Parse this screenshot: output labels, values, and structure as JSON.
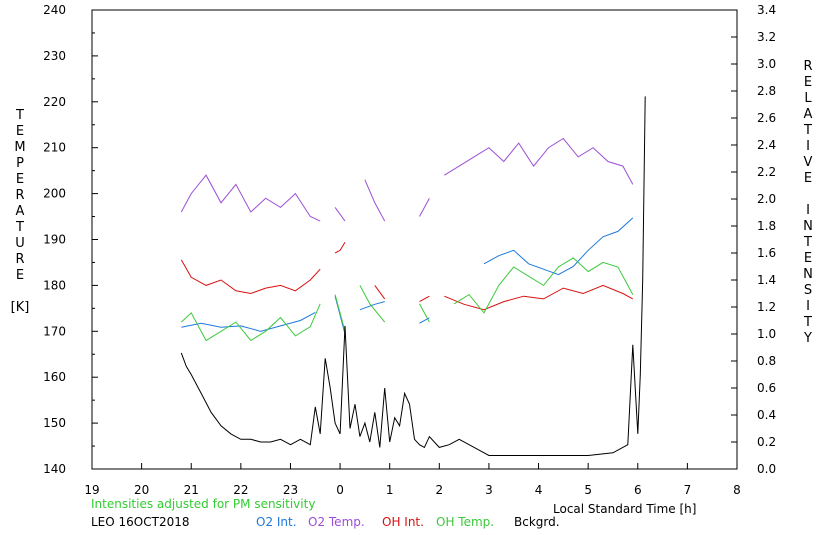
{
  "chart_data": {
    "type": "line",
    "y_left_label_letters": [
      "T",
      "E",
      "M",
      "P",
      "E",
      "R",
      "A",
      "T",
      "U",
      "R",
      "E",
      "",
      "[K]"
    ],
    "y_right_label_letters": [
      "R",
      "E",
      "L",
      "A",
      "T",
      "I",
      "V",
      "E",
      "",
      "I",
      "N",
      "T",
      "E",
      "N",
      "S",
      "I",
      "T",
      "Y"
    ],
    "xlabel": "Local Standard Time [h]",
    "xlim": [
      19,
      32
    ],
    "x_tick_values": [
      19,
      20,
      21,
      22,
      23,
      24,
      25,
      26,
      27,
      28,
      29,
      30,
      31,
      32
    ],
    "x_tick_labels": [
      "19",
      "20",
      "21",
      "22",
      "23",
      "0",
      "1",
      "2",
      "3",
      "4",
      "5",
      "6",
      "7",
      "8"
    ],
    "ylim_left": [
      140,
      240
    ],
    "y_left_ticks": [
      140,
      150,
      160,
      170,
      180,
      190,
      200,
      210,
      220,
      230,
      240
    ],
    "ylim_right": [
      0.0,
      3.4
    ],
    "y_right_ticks": [
      "0.0",
      "0.2",
      "0.4",
      "0.6",
      "0.8",
      "1.0",
      "1.2",
      "1.4",
      "1.6",
      "1.8",
      "2.0",
      "2.2",
      "2.4",
      "2.6",
      "2.8",
      "3.0",
      "3.2",
      "3.4"
    ],
    "note": "Intensities adjusted for PM sensitivity",
    "station": "LEO 16OCT2018",
    "colors": {
      "o2_int": "#1e78dc",
      "o2_temp": "#9b4fd6",
      "oh_int": "#d81010",
      "oh_temp": "#3cc83c",
      "bckgrd": "#000000",
      "note": "#33cc33"
    },
    "series": [
      {
        "name": "O2 Int.",
        "key": "o2_int",
        "axis": "right",
        "segments": [
          {
            "x": [
              20.8,
              21.2,
              21.6,
              22.0,
              22.4,
              22.8,
              23.2,
              23.5
            ],
            "y": [
              1.05,
              1.08,
              1.05,
              1.06,
              1.02,
              1.06,
              1.1,
              1.16
            ]
          },
          {
            "x": [
              23.9,
              24.0,
              24.1
            ],
            "y": [
              1.28,
              1.14,
              1.0
            ]
          },
          {
            "x": [
              24.4,
              24.7,
              24.9
            ],
            "y": [
              1.18,
              1.22,
              1.24
            ]
          },
          {
            "x": [
              25.6,
              25.8
            ],
            "y": [
              1.08,
              1.12
            ]
          },
          {
            "x": [
              26.9,
              27.2,
              27.5,
              27.8,
              28.1,
              28.4,
              28.7,
              29.0,
              29.3,
              29.6,
              29.9
            ],
            "y": [
              1.52,
              1.58,
              1.62,
              1.52,
              1.48,
              1.44,
              1.5,
              1.62,
              1.72,
              1.76,
              1.86
            ]
          }
        ]
      },
      {
        "name": "O2 Temp.",
        "key": "o2_temp",
        "axis": "left",
        "segments": [
          {
            "x": [
              20.8,
              21.0,
              21.3,
              21.6,
              21.9,
              22.2,
              22.5,
              22.8,
              23.1,
              23.4,
              23.6
            ],
            "y": [
              196,
              200,
              204,
              198,
              202,
              196,
              199,
              197,
              200,
              195,
              194
            ]
          },
          {
            "x": [
              23.9,
              24.1
            ],
            "y": [
              197,
              194
            ]
          },
          {
            "x": [
              24.5,
              24.7,
              24.9
            ],
            "y": [
              203,
              198,
              194
            ]
          },
          {
            "x": [
              25.6,
              25.8
            ],
            "y": [
              195,
              199
            ]
          },
          {
            "x": [
              26.1,
              26.4,
              26.7,
              27.0,
              27.3,
              27.6,
              27.9,
              28.2,
              28.5,
              28.8,
              29.1,
              29.4,
              29.7,
              29.9
            ],
            "y": [
              204,
              206,
              208,
              210,
              207,
              211,
              206,
              210,
              212,
              208,
              210,
              207,
              206,
              202
            ]
          }
        ]
      },
      {
        "name": "OH Int.",
        "key": "oh_int",
        "axis": "right",
        "segments": [
          {
            "x": [
              20.8,
              21.0,
              21.3,
              21.6,
              21.9,
              22.2,
              22.5,
              22.8,
              23.1,
              23.4,
              23.6
            ],
            "y": [
              1.55,
              1.42,
              1.36,
              1.4,
              1.32,
              1.3,
              1.34,
              1.36,
              1.32,
              1.4,
              1.48
            ]
          },
          {
            "x": [
              23.9,
              24.0,
              24.1
            ],
            "y": [
              1.6,
              1.62,
              1.68
            ]
          },
          {
            "x": [
              24.7,
              24.9
            ],
            "y": [
              1.36,
              1.26
            ]
          },
          {
            "x": [
              25.6,
              25.8
            ],
            "y": [
              1.24,
              1.28
            ]
          },
          {
            "x": [
              26.1,
              26.5,
              26.9,
              27.3,
              27.7,
              28.1,
              28.5,
              28.9,
              29.3,
              29.7,
              29.9
            ],
            "y": [
              1.28,
              1.22,
              1.18,
              1.24,
              1.28,
              1.26,
              1.34,
              1.3,
              1.36,
              1.3,
              1.26
            ]
          }
        ]
      },
      {
        "name": "OH Temp.",
        "key": "oh_temp",
        "axis": "left",
        "segments": [
          {
            "x": [
              20.8,
              21.0,
              21.3,
              21.6,
              21.9,
              22.2,
              22.5,
              22.8,
              23.1,
              23.4,
              23.6
            ],
            "y": [
              172,
              174,
              168,
              170,
              172,
              168,
              170,
              173,
              169,
              171,
              176
            ]
          },
          {
            "x": [
              23.9,
              24.1
            ],
            "y": [
              178,
              170
            ]
          },
          {
            "x": [
              24.4,
              24.6,
              24.9
            ],
            "y": [
              180,
              176,
              172
            ]
          },
          {
            "x": [
              25.6,
              25.8
            ],
            "y": [
              176,
              172
            ]
          },
          {
            "x": [
              26.3,
              26.6,
              26.9,
              27.2,
              27.5,
              27.8,
              28.1,
              28.4,
              28.7,
              29.0,
              29.3,
              29.6,
              29.9
            ],
            "y": [
              176,
              178,
              174,
              180,
              184,
              182,
              180,
              184,
              186,
              183,
              185,
              184,
              178
            ]
          }
        ]
      },
      {
        "name": "Bckgrd.",
        "key": "bckgrd",
        "axis": "right",
        "segments": [
          {
            "x": [
              20.8,
              20.9,
              21.0,
              21.2,
              21.4,
              21.6,
              21.8,
              22.0,
              22.2,
              22.4,
              22.6,
              22.8,
              23.0,
              23.2,
              23.4,
              23.5,
              23.6,
              23.7,
              23.8,
              23.9,
              24.0,
              24.1,
              24.2,
              24.3,
              24.4,
              24.5,
              24.6,
              24.7,
              24.8,
              24.9,
              25.0,
              25.1,
              25.2,
              25.3,
              25.4,
              25.5,
              25.6,
              25.7,
              25.8,
              26.0,
              26.2,
              26.4,
              26.6,
              26.8,
              27.0,
              27.5,
              28.0,
              28.5,
              29.0,
              29.5,
              29.8,
              29.9,
              30.0,
              30.05,
              30.1,
              30.15
            ],
            "y": [
              0.86,
              0.76,
              0.7,
              0.56,
              0.42,
              0.32,
              0.26,
              0.22,
              0.22,
              0.2,
              0.2,
              0.22,
              0.18,
              0.22,
              0.18,
              0.46,
              0.26,
              0.82,
              0.6,
              0.34,
              0.26,
              1.06,
              0.3,
              0.48,
              0.24,
              0.34,
              0.2,
              0.42,
              0.16,
              0.6,
              0.2,
              0.38,
              0.32,
              0.56,
              0.48,
              0.22,
              0.18,
              0.16,
              0.24,
              0.16,
              0.18,
              0.22,
              0.18,
              0.14,
              0.1,
              0.1,
              0.1,
              0.1,
              0.1,
              0.12,
              0.18,
              0.92,
              0.26,
              0.7,
              1.4,
              2.76
            ]
          }
        ]
      }
    ]
  }
}
